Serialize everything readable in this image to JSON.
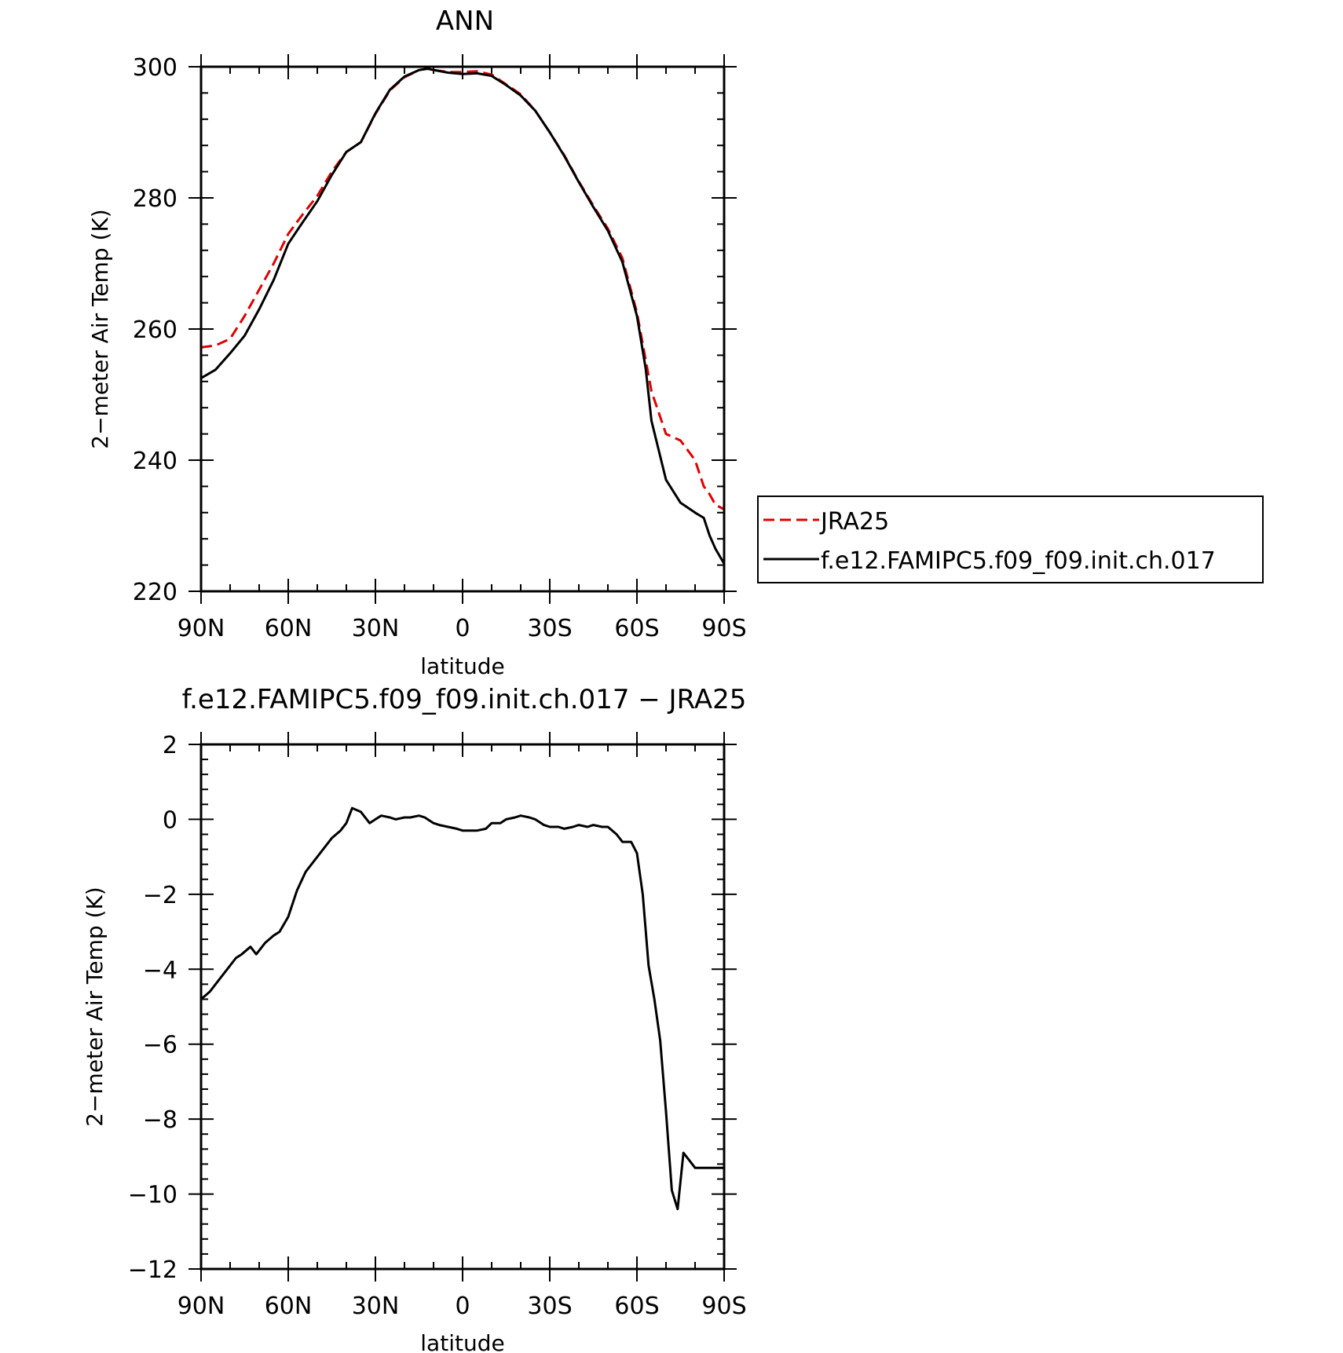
{
  "colors": {
    "model": "#000000",
    "obs": "#e00000",
    "axes": "#000000"
  },
  "chart_data": [
    {
      "type": "line",
      "title": "ANN",
      "xlabel": "latitude",
      "ylabel": "2−meter Air Temp (K)",
      "xlim": [
        90,
        -90
      ],
      "ylim": [
        220,
        300
      ],
      "xticks": [
        90,
        60,
        30,
        0,
        -30,
        -60,
        -90
      ],
      "xtick_labels": [
        "90N",
        "60N",
        "30N",
        "0",
        "30S",
        "60S",
        "90S"
      ],
      "yticks": [
        220,
        240,
        260,
        280,
        300
      ],
      "ytick_labels": [
        "220",
        "240",
        "260",
        "280",
        "300"
      ],
      "grid": false,
      "legend_position": "right",
      "series": [
        {
          "name": "JRA25",
          "style": "dashed",
          "color": "#e00000",
          "x": [
            90,
            85,
            80,
            75,
            70,
            65,
            60,
            55,
            50,
            45,
            40,
            35,
            30,
            25,
            20,
            15,
            12,
            10,
            5,
            0,
            -5,
            -10,
            -15,
            -20,
            -25,
            -30,
            -35,
            -40,
            -45,
            -50,
            -55,
            -60,
            -65,
            -70,
            -75,
            -80,
            -83,
            -85,
            -87,
            -90
          ],
          "y": [
            257.2,
            257.5,
            258.5,
            262.0,
            266.0,
            270.0,
            274.5,
            277.5,
            280.3,
            284.0,
            287.0,
            288.5,
            292.8,
            296.4,
            298.4,
            299.5,
            299.7,
            299.5,
            299.2,
            299.2,
            299.3,
            298.8,
            297.3,
            295.8,
            293.3,
            290.0,
            286.5,
            282.5,
            278.8,
            275.3,
            270.8,
            262.5,
            250.5,
            244.0,
            243.0,
            240.0,
            236.0,
            234.8,
            233.2,
            232.5
          ]
        },
        {
          "name": "f.e12.FAMIPC5.f09_f09.init.ch.017",
          "style": "solid",
          "color": "#000000",
          "x": [
            90,
            85,
            80,
            75,
            70,
            65,
            60,
            55,
            50,
            45,
            40,
            35,
            30,
            25,
            20,
            15,
            12,
            10,
            5,
            0,
            -5,
            -10,
            -15,
            -20,
            -25,
            -30,
            -35,
            -40,
            -45,
            -50,
            -55,
            -60,
            -63,
            -65,
            -70,
            -75,
            -80,
            -83,
            -85,
            -87,
            -90
          ],
          "y": [
            252.5,
            253.8,
            256.3,
            259.0,
            263.0,
            267.5,
            273.0,
            276.3,
            279.5,
            283.5,
            287.0,
            288.5,
            292.9,
            296.5,
            298.5,
            299.5,
            299.7,
            299.5,
            299.1,
            298.9,
            299.0,
            298.6,
            297.2,
            295.6,
            293.3,
            290.0,
            286.4,
            282.4,
            278.6,
            275.0,
            270.2,
            262.0,
            254.0,
            246.0,
            237.0,
            233.5,
            232.0,
            231.2,
            228.5,
            226.5,
            224.2
          ]
        }
      ]
    },
    {
      "type": "line",
      "title": "f.e12.FAMIPC5.f09_f09.init.ch.017 − JRA25",
      "xlabel": "latitude",
      "ylabel": "2−meter Air Temp (K)",
      "xlim": [
        90,
        -90
      ],
      "ylim": [
        -12,
        2
      ],
      "xticks": [
        90,
        60,
        30,
        0,
        -30,
        -60,
        -90
      ],
      "xtick_labels": [
        "90N",
        "60N",
        "30N",
        "0",
        "30S",
        "60S",
        "90S"
      ],
      "yticks": [
        -12,
        -10,
        -8,
        -6,
        -4,
        -2,
        0,
        2
      ],
      "ytick_labels": [
        "−12",
        "−10",
        "−8",
        "−6",
        "−4",
        "−2",
        "0",
        "2"
      ],
      "grid": false,
      "series": [
        {
          "style": "solid",
          "color": "#000000",
          "x": [
            90,
            87,
            84,
            81,
            78,
            76,
            73,
            71,
            68,
            65,
            63,
            60,
            57,
            54,
            51,
            48,
            45,
            42,
            40,
            38,
            35,
            32,
            30,
            28,
            25,
            23,
            20,
            18,
            15,
            13,
            10,
            8,
            5,
            2,
            0,
            -2,
            -5,
            -8,
            -10,
            -13,
            -15,
            -18,
            -20,
            -23,
            -25,
            -28,
            -30,
            -33,
            -35,
            -38,
            -40,
            -43,
            -45,
            -48,
            -50,
            -53,
            -55,
            -58,
            -60,
            -62,
            -64,
            -66,
            -68,
            -70,
            -72,
            -74,
            -76,
            -78,
            -80,
            -82,
            -84,
            -86,
            -88,
            -90
          ],
          "y": [
            -4.8,
            -4.6,
            -4.3,
            -4.0,
            -3.7,
            -3.6,
            -3.4,
            -3.6,
            -3.3,
            -3.1,
            -3.0,
            -2.6,
            -1.9,
            -1.4,
            -1.1,
            -0.8,
            -0.5,
            -0.3,
            -0.1,
            0.3,
            0.2,
            -0.1,
            0.0,
            0.1,
            0.05,
            0.0,
            0.05,
            0.05,
            0.1,
            0.05,
            -0.1,
            -0.15,
            -0.2,
            -0.25,
            -0.3,
            -0.3,
            -0.3,
            -0.25,
            -0.1,
            -0.1,
            0.0,
            0.05,
            0.1,
            0.05,
            0.0,
            -0.15,
            -0.2,
            -0.2,
            -0.25,
            -0.2,
            -0.15,
            -0.2,
            -0.15,
            -0.2,
            -0.2,
            -0.4,
            -0.6,
            -0.6,
            -0.9,
            -2.0,
            -3.9,
            -4.8,
            -5.9,
            -7.8,
            -9.9,
            -10.4,
            -8.9,
            -9.1,
            -9.3,
            -9.3,
            -9.3,
            -9.3,
            -9.3,
            -9.3
          ]
        }
      ]
    }
  ]
}
